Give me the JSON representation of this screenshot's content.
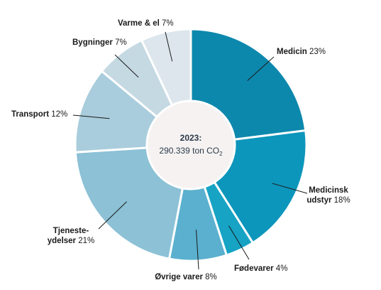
{
  "chart_data": {
    "type": "pie",
    "variant": "donut",
    "center_label": {
      "title": "2023:",
      "value": "290.339 ton CO",
      "unit_subscript": "2"
    },
    "slices": [
      {
        "name": "Medicin",
        "value_label": "23%",
        "value": 23,
        "color": "#0d88ad",
        "label_lines": [
          "Medicin"
        ]
      },
      {
        "name": "Medicinsk udstyr",
        "value_label": "18%",
        "value": 18,
        "color": "#0d96bb",
        "label_lines": [
          "Medicinsk",
          "udstyr"
        ]
      },
      {
        "name": "Fødevarer",
        "value_label": "4%",
        "value": 4,
        "color": "#16a3c4",
        "label_lines": [
          "Fødevarer"
        ]
      },
      {
        "name": "Øvrige varer",
        "value_label": "8%",
        "value": 8,
        "color": "#5ab0ce",
        "label_lines": [
          "Øvrige varer"
        ]
      },
      {
        "name": "Tjenesteydelser",
        "value_label": "21%",
        "value": 21,
        "color": "#8cc1d6",
        "label_lines": [
          "Tjeneste-",
          "ydelser"
        ]
      },
      {
        "name": "Transport",
        "value_label": "12%",
        "value": 12,
        "color": "#a9cddc",
        "label_lines": [
          "Transport"
        ]
      },
      {
        "name": "Bygninger",
        "value_label": "7%",
        "value": 7,
        "color": "#c5d9e3",
        "label_lines": [
          "Bygninger"
        ]
      },
      {
        "name": "Varme & el",
        "value_label": "7%",
        "value": 7,
        "color": "#dce6ec",
        "label_lines": [
          "Varme & el"
        ]
      }
    ],
    "center_color": "#f5f2f1"
  }
}
